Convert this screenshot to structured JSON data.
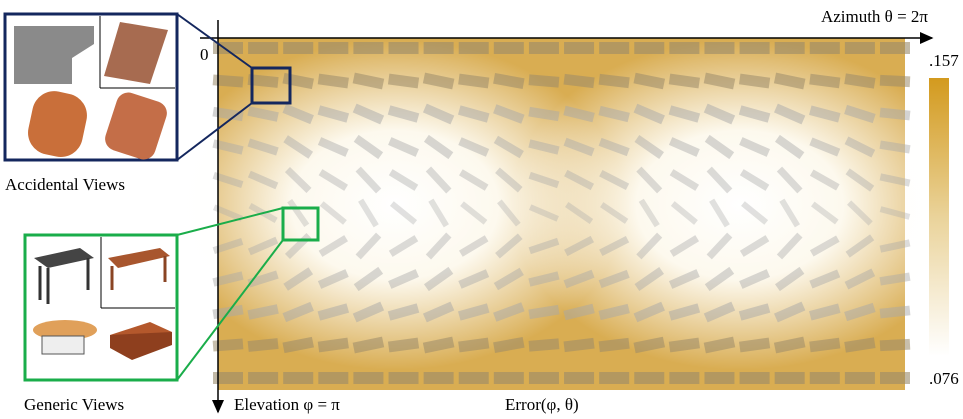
{
  "labels": {
    "azimuth": "Azimuth θ = 2π",
    "origin": "0",
    "elevation": "Elevation φ = π",
    "error": "Error(φ, θ)"
  },
  "colorbar": {
    "max": ".157",
    "min": ".076"
  },
  "insets": {
    "accidental": "Accidental Views",
    "generic": "Generic Views"
  }
}
